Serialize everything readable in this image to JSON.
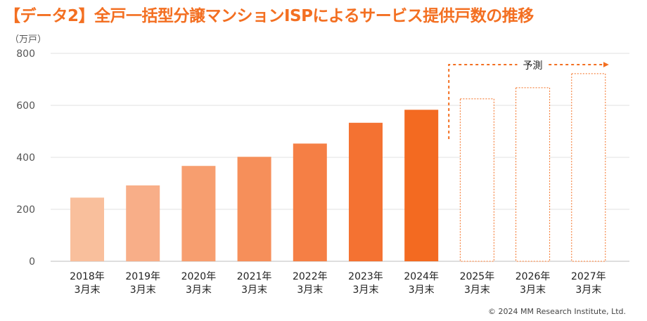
{
  "title": "【データ2】全戸一括型分譲マンションISPによるサービス提供戸数の推移",
  "unit": "（万戸）",
  "copyright": "© 2024 MM Research Institute, Ltd.",
  "forecast_label": "予測",
  "colors": {
    "title": "#f36f21",
    "forecast": "#f36f21",
    "bars": [
      "#f9bf9c",
      "#f8ae88",
      "#f79e6f",
      "#f68f5a",
      "#f57f45",
      "#f47232",
      "#f36a21"
    ]
  },
  "chart_data": {
    "type": "bar",
    "categories": [
      "2018年 3月末",
      "2019年 3月末",
      "2020年 3月末",
      "2021年 3月末",
      "2022年 3月末",
      "2023年 3月末",
      "2024年 3月末",
      "2025年 3月末",
      "2026年 3月末",
      "2027年 3月末"
    ],
    "category_lines": [
      [
        "2018年",
        "3月末"
      ],
      [
        "2019年",
        "3月末"
      ],
      [
        "2020年",
        "3月末"
      ],
      [
        "2021年",
        "3月末"
      ],
      [
        "2022年",
        "3月末"
      ],
      [
        "2023年",
        "3月末"
      ],
      [
        "2024年",
        "3月末"
      ],
      [
        "2025年",
        "3月末"
      ],
      [
        "2026年",
        "3月末"
      ],
      [
        "2027年",
        "3月末"
      ]
    ],
    "values": [
      245,
      292,
      367,
      402,
      453,
      533,
      583,
      625,
      668,
      722
    ],
    "forecast": [
      false,
      false,
      false,
      false,
      false,
      false,
      false,
      true,
      true,
      true
    ],
    "ylim": [
      0,
      800
    ],
    "yticks": [
      0,
      200,
      400,
      600,
      800
    ],
    "ylabel": "（万戸）",
    "grid": true
  }
}
